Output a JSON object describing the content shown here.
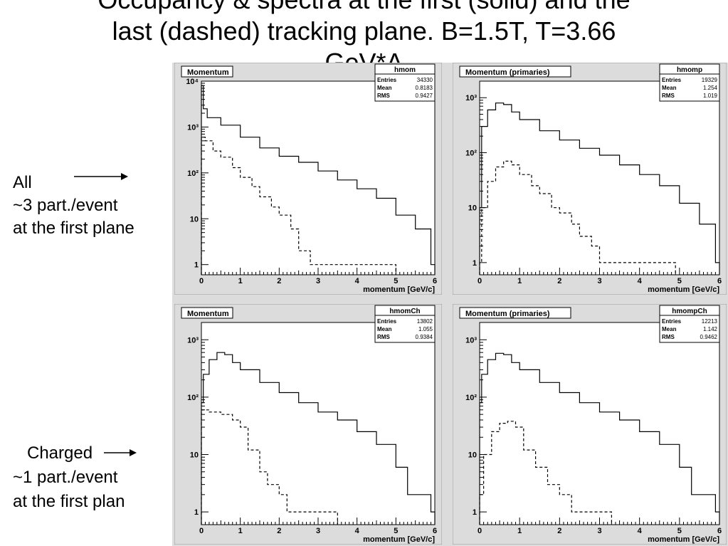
{
  "title_lines": [
    "Occupancy & spectra at the first (solid) and the",
    "last (dashed) tracking plane. B=1.5T, T=3.66",
    "GeV*A"
  ],
  "side_labels": {
    "all": [
      "All",
      "~3 part./event",
      "at the first plane"
    ],
    "charged": [
      "Charged",
      "~1 part./event",
      "at the first plan"
    ]
  },
  "colors": {
    "frame_bg": "#dcdcdc",
    "plot_bg": "#ffffff",
    "line": "#000000"
  },
  "chart_data": [
    {
      "type": "line",
      "panel_title": "Momentum",
      "stats": {
        "name": "hmom",
        "entries_label": "Entries",
        "entries": "34330",
        "mean_label": "Mean",
        "mean": "0.8183",
        "rms_label": "RMS",
        "rms": "0.9427"
      },
      "xlabel": "momentum [GeV/c]",
      "xlim": [
        0,
        6
      ],
      "ylim": [
        0.6,
        10000
      ],
      "log_y": true,
      "x_ticks": [
        "0",
        "1",
        "2",
        "3",
        "4",
        "5",
        "6"
      ],
      "y_ticks": [
        {
          "v": 1,
          "label": "1"
        },
        {
          "v": 10,
          "label": "10"
        },
        {
          "v": 100,
          "label": "10²"
        },
        {
          "v": 1000,
          "label": "10³"
        },
        {
          "v": 10000,
          "label": "10⁴"
        }
      ],
      "series": [
        {
          "style": "solid",
          "points": [
            [
              0,
              8000
            ],
            [
              0.05,
              2500
            ],
            [
              0.15,
              1600
            ],
            [
              0.5,
              1100
            ],
            [
              1,
              600
            ],
            [
              1.5,
              350
            ],
            [
              2,
              230
            ],
            [
              2.5,
              170
            ],
            [
              3,
              110
            ],
            [
              3.5,
              70
            ],
            [
              4,
              45
            ],
            [
              4.5,
              28
            ],
            [
              5,
              12
            ],
            [
              5.5,
              6
            ],
            [
              5.9,
              1
            ]
          ]
        },
        {
          "style": "dashed",
          "points": [
            [
              0,
              600
            ],
            [
              0.1,
              500
            ],
            [
              0.3,
              300
            ],
            [
              0.5,
              220
            ],
            [
              0.8,
              130
            ],
            [
              1,
              80
            ],
            [
              1.3,
              50
            ],
            [
              1.5,
              30
            ],
            [
              1.8,
              18
            ],
            [
              2,
              12
            ],
            [
              2.3,
              6
            ],
            [
              2.5,
              2
            ],
            [
              2.8,
              1
            ],
            [
              3,
              1
            ],
            [
              3.5,
              1
            ],
            [
              3.9,
              1
            ],
            [
              4.9,
              1
            ]
          ]
        }
      ]
    },
    {
      "type": "line",
      "panel_title": "Momentum (primaries)",
      "stats": {
        "name": "hmomp",
        "entries_label": "Entries",
        "entries": "19329",
        "mean_label": "Mean",
        "mean": "1.254",
        "rms_label": "RMS",
        "rms": "1.019"
      },
      "xlabel": "momentum [GeV/c]",
      "xlim": [
        0,
        6
      ],
      "ylim": [
        0.6,
        2000
      ],
      "log_y": true,
      "x_ticks": [
        "0",
        "1",
        "2",
        "3",
        "4",
        "5",
        "6"
      ],
      "y_ticks": [
        {
          "v": 1,
          "label": "1"
        },
        {
          "v": 10,
          "label": "10"
        },
        {
          "v": 100,
          "label": "10²"
        },
        {
          "v": 1000,
          "label": "10³"
        }
      ],
      "series": [
        {
          "style": "solid",
          "points": [
            [
              0,
              10
            ],
            [
              0.05,
              300
            ],
            [
              0.2,
              600
            ],
            [
              0.4,
              800
            ],
            [
              0.6,
              750
            ],
            [
              0.8,
              550
            ],
            [
              1,
              400
            ],
            [
              1.5,
              250
            ],
            [
              2,
              170
            ],
            [
              2.5,
              120
            ],
            [
              3,
              90
            ],
            [
              3.5,
              60
            ],
            [
              4,
              40
            ],
            [
              4.5,
              25
            ],
            [
              5,
              12
            ],
            [
              5.5,
              5
            ],
            [
              5.9,
              1
            ]
          ]
        },
        {
          "style": "dashed",
          "points": [
            [
              0,
              1
            ],
            [
              0.05,
              10
            ],
            [
              0.2,
              30
            ],
            [
              0.4,
              55
            ],
            [
              0.6,
              70
            ],
            [
              0.8,
              60
            ],
            [
              1,
              40
            ],
            [
              1.3,
              25
            ],
            [
              1.5,
              18
            ],
            [
              1.8,
              10
            ],
            [
              2,
              8
            ],
            [
              2.3,
              5
            ],
            [
              2.5,
              3
            ],
            [
              2.8,
              2
            ],
            [
              3,
              1
            ],
            [
              3.5,
              1
            ],
            [
              4.2,
              1
            ],
            [
              4.8,
              1
            ]
          ]
        }
      ]
    },
    {
      "type": "line",
      "panel_title": "Momentum",
      "stats": {
        "name": "hmomCh",
        "entries_label": "Entries",
        "entries": "13802",
        "mean_label": "Mean",
        "mean": "1.055",
        "rms_label": "RMS",
        "rms": "0.9384"
      },
      "xlabel": "momentum [GeV/c]",
      "xlim": [
        0,
        6
      ],
      "ylim": [
        0.6,
        2000
      ],
      "log_y": true,
      "x_ticks": [
        "0",
        "1",
        "2",
        "3",
        "4",
        "5",
        "6"
      ],
      "y_ticks": [
        {
          "v": 1,
          "label": "1"
        },
        {
          "v": 10,
          "label": "10"
        },
        {
          "v": 100,
          "label": "10²"
        },
        {
          "v": 1000,
          "label": "10³"
        }
      ],
      "series": [
        {
          "style": "solid",
          "points": [
            [
              0,
              80
            ],
            [
              0.05,
              250
            ],
            [
              0.2,
              450
            ],
            [
              0.4,
              600
            ],
            [
              0.6,
              550
            ],
            [
              0.8,
              400
            ],
            [
              1,
              300
            ],
            [
              1.5,
              180
            ],
            [
              2,
              120
            ],
            [
              2.5,
              80
            ],
            [
              3,
              55
            ],
            [
              3.5,
              40
            ],
            [
              4,
              25
            ],
            [
              4.5,
              15
            ],
            [
              5,
              6
            ],
            [
              5.3,
              2
            ],
            [
              5.6,
              2
            ],
            [
              5.9,
              1
            ]
          ]
        },
        {
          "style": "dashed",
          "points": [
            [
              0,
              60
            ],
            [
              0.2,
              55
            ],
            [
              0.5,
              50
            ],
            [
              0.8,
              40
            ],
            [
              1,
              30
            ],
            [
              1.2,
              12
            ],
            [
              1.5,
              5
            ],
            [
              1.7,
              3
            ],
            [
              2,
              2
            ],
            [
              2.2,
              1
            ],
            [
              2.5,
              1
            ],
            [
              3,
              1
            ],
            [
              3.4,
              1
            ]
          ]
        }
      ]
    },
    {
      "type": "line",
      "panel_title": "Momentum (primaries)",
      "stats": {
        "name": "hmompCh",
        "entries_label": "Entries",
        "entries": "12213",
        "mean_label": "Mean",
        "mean": "1.142",
        "rms_label": "RMS",
        "rms": "0.9462"
      },
      "xlabel": "momentum [GeV/c]",
      "xlim": [
        0,
        6
      ],
      "ylim": [
        0.6,
        2000
      ],
      "log_y": true,
      "x_ticks": [
        "0",
        "1",
        "2",
        "3",
        "4",
        "5",
        "6"
      ],
      "y_ticks": [
        {
          "v": 1,
          "label": "1"
        },
        {
          "v": 10,
          "label": "10"
        },
        {
          "v": 100,
          "label": "10²"
        },
        {
          "v": 1000,
          "label": "10³"
        }
      ],
      "series": [
        {
          "style": "solid",
          "points": [
            [
              0,
              80
            ],
            [
              0.05,
              250
            ],
            [
              0.2,
              450
            ],
            [
              0.4,
              580
            ],
            [
              0.6,
              550
            ],
            [
              0.8,
              400
            ],
            [
              1,
              300
            ],
            [
              1.5,
              180
            ],
            [
              2,
              120
            ],
            [
              2.5,
              80
            ],
            [
              3,
              55
            ],
            [
              3.5,
              40
            ],
            [
              4,
              25
            ],
            [
              4.5,
              15
            ],
            [
              5,
              6
            ],
            [
              5.3,
              2
            ],
            [
              5.6,
              2
            ],
            [
              5.9,
              1
            ]
          ]
        },
        {
          "style": "dashed",
          "points": [
            [
              0,
              2
            ],
            [
              0.1,
              10
            ],
            [
              0.3,
              25
            ],
            [
              0.5,
              35
            ],
            [
              0.7,
              38
            ],
            [
              0.9,
              30
            ],
            [
              1.1,
              12
            ],
            [
              1.4,
              6
            ],
            [
              1.7,
              3
            ],
            [
              2,
              2
            ],
            [
              2.3,
              1
            ],
            [
              2.7,
              1
            ],
            [
              3.2,
              1
            ]
          ]
        }
      ]
    }
  ]
}
